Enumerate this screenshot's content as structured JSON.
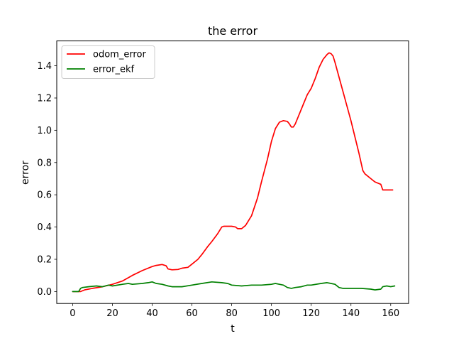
{
  "chart_data": {
    "type": "line",
    "title": "the error",
    "xlabel": "t",
    "ylabel": "error",
    "xlim": [
      -8,
      169
    ],
    "ylim": [
      -0.074,
      1.554
    ],
    "xticks": [
      0,
      20,
      40,
      60,
      80,
      100,
      120,
      140,
      160
    ],
    "yticks": [
      0.0,
      0.2,
      0.4,
      0.6,
      0.8,
      1.0,
      1.2,
      1.4
    ],
    "xtick_labels": [
      "0",
      "20",
      "40",
      "60",
      "80",
      "100",
      "120",
      "140",
      "160"
    ],
    "ytick_labels": [
      "0.0",
      "0.2",
      "0.4",
      "0.6",
      "0.8",
      "1.0",
      "1.2",
      "1.4"
    ],
    "grid": false,
    "legend_position": "upper-left",
    "series": [
      {
        "name": "odom_error",
        "color": "#ff0000",
        "x": [
          0,
          4,
          6,
          10,
          15,
          20,
          25,
          30,
          35,
          40,
          42,
          45,
          47,
          48,
          50,
          53,
          55,
          58,
          60,
          63,
          65,
          68,
          70,
          73,
          75,
          76,
          78,
          80,
          82,
          83,
          85,
          87,
          90,
          93,
          95,
          98,
          100,
          102,
          104,
          106,
          108,
          109,
          110,
          111,
          112,
          114,
          116,
          118,
          120,
          122,
          124,
          126,
          128,
          129,
          130,
          131,
          132,
          134,
          136,
          138,
          140,
          142,
          144,
          146,
          147,
          148,
          150,
          152,
          154,
          155,
          156,
          157,
          158,
          160,
          161
        ],
        "y": [
          0.0,
          0.0,
          0.01,
          0.02,
          0.03,
          0.045,
          0.065,
          0.1,
          0.13,
          0.155,
          0.162,
          0.168,
          0.16,
          0.14,
          0.135,
          0.137,
          0.145,
          0.15,
          0.17,
          0.2,
          0.23,
          0.28,
          0.31,
          0.36,
          0.4,
          0.405,
          0.405,
          0.405,
          0.4,
          0.39,
          0.39,
          0.41,
          0.47,
          0.58,
          0.68,
          0.82,
          0.93,
          1.01,
          1.05,
          1.06,
          1.055,
          1.04,
          1.02,
          1.02,
          1.04,
          1.1,
          1.16,
          1.22,
          1.26,
          1.32,
          1.39,
          1.44,
          1.47,
          1.48,
          1.475,
          1.46,
          1.42,
          1.33,
          1.24,
          1.15,
          1.06,
          0.96,
          0.86,
          0.75,
          0.73,
          0.72,
          0.7,
          0.68,
          0.67,
          0.665,
          0.63,
          0.63,
          0.63,
          0.63,
          0.63
        ]
      },
      {
        "name": "error_ekf",
        "color": "#008000",
        "x": [
          0,
          3,
          4,
          5,
          8,
          12,
          15,
          18,
          20,
          25,
          28,
          30,
          35,
          38,
          40,
          42,
          45,
          48,
          50,
          55,
          60,
          65,
          70,
          75,
          78,
          80,
          85,
          90,
          95,
          100,
          102,
          104,
          106,
          108,
          110,
          112,
          115,
          118,
          120,
          125,
          128,
          130,
          132,
          134,
          136,
          140,
          145,
          150,
          152,
          155,
          156,
          158,
          160,
          162
        ],
        "y": [
          0.0,
          0.0,
          0.02,
          0.025,
          0.03,
          0.035,
          0.03,
          0.04,
          0.035,
          0.045,
          0.05,
          0.045,
          0.05,
          0.055,
          0.06,
          0.05,
          0.045,
          0.035,
          0.03,
          0.03,
          0.04,
          0.05,
          0.06,
          0.055,
          0.05,
          0.04,
          0.035,
          0.04,
          0.04,
          0.045,
          0.05,
          0.045,
          0.04,
          0.025,
          0.02,
          0.025,
          0.03,
          0.04,
          0.04,
          0.05,
          0.055,
          0.05,
          0.045,
          0.025,
          0.02,
          0.02,
          0.02,
          0.015,
          0.01,
          0.015,
          0.03,
          0.035,
          0.03,
          0.035
        ]
      }
    ]
  }
}
